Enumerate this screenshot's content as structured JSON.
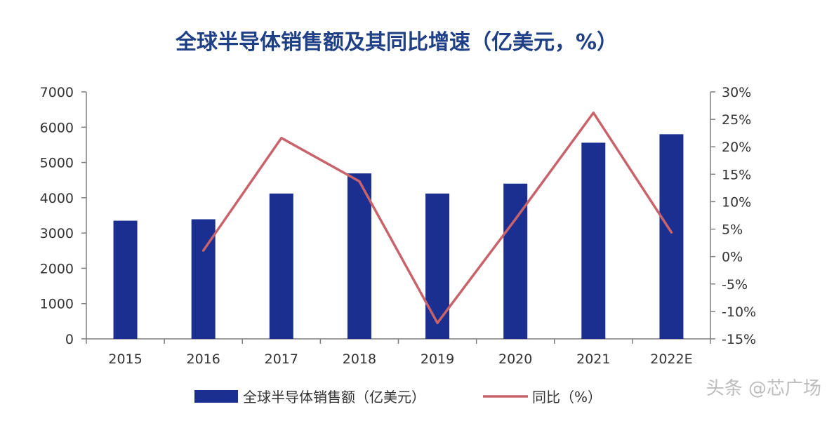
{
  "chart_data": {
    "type": "bar",
    "title": "全球半导体销售额及其同比增速（亿美元，%）",
    "categories": [
      "2015",
      "2016",
      "2017",
      "2018",
      "2019",
      "2020",
      "2021",
      "2022E"
    ],
    "series": [
      {
        "name": "全球半导体销售额（亿美元）",
        "type": "bar",
        "axis": "left",
        "values": [
          3350,
          3390,
          4120,
          4690,
          4120,
          4400,
          5560,
          5800
        ]
      },
      {
        "name": "同比（%）",
        "type": "line",
        "axis": "right",
        "values": [
          null,
          1.1,
          21.6,
          13.7,
          -12.1,
          6.8,
          26.2,
          4.4
        ]
      }
    ],
    "y_left": {
      "ylim": [
        0,
        7000
      ],
      "ticks": [
        "7000",
        "6000",
        "5000",
        "4000",
        "3000",
        "2000",
        "1000",
        "0"
      ]
    },
    "y_right": {
      "ylim": [
        -15,
        30
      ],
      "ticks": [
        "30%",
        "25%",
        "20%",
        "15%",
        "10%",
        "5%",
        "0%",
        "-5%",
        "-10%",
        "-15%"
      ]
    },
    "grid": false,
    "legend_position": "bottom",
    "colors": {
      "bar": "#1a2f8f",
      "line": "#c9636b",
      "title": "#1f3f86",
      "axis": "#7f7f7f"
    }
  },
  "watermark": "头条 @芯广场"
}
